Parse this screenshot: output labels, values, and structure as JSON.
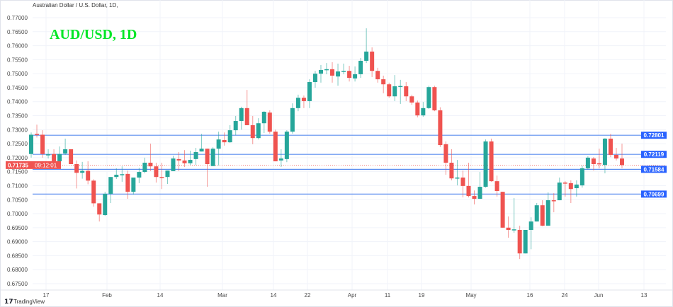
{
  "header": {
    "symbol_description": "Australian Dollar / U.S. Dollar, 1D,"
  },
  "footer": {
    "brand": "TradingView",
    "logo_text": "17"
  },
  "chart_data": {
    "type": "candlestick",
    "title": "AUD/USD, 1D",
    "title_color": "#00e626",
    "ylim": [
      0.675,
      0.77
    ],
    "y_ticks": [
      "0.77000",
      "0.76500",
      "0.76000",
      "0.75500",
      "0.75000",
      "0.74500",
      "0.74000",
      "0.73500",
      "0.73000",
      "0.72500",
      "0.72000",
      "0.71500",
      "0.71000",
      "0.70500",
      "0.70000",
      "0.69500",
      "0.69000",
      "0.68500",
      "0.68000",
      "0.67500"
    ],
    "y_tick_values": [
      0.77,
      0.765,
      0.76,
      0.755,
      0.75,
      0.745,
      0.74,
      0.735,
      0.73,
      0.725,
      0.72,
      0.715,
      0.71,
      0.705,
      0.7,
      0.695,
      0.69,
      0.685,
      0.68,
      0.675
    ],
    "x_ticks": [
      "17",
      "Feb",
      "14",
      "Mar",
      "14",
      "22",
      "Apr",
      "11",
      "19",
      "May",
      "16",
      "24",
      "Jun",
      "13"
    ],
    "grid": true,
    "colors": {
      "up": "#26a69a",
      "down": "#ef5350",
      "level_line": "#2962ff",
      "current_price": "#ef5350"
    },
    "levels": [
      {
        "label": "0.72801",
        "value": 0.72801
      },
      {
        "label": "0.72119",
        "value": 0.72119
      },
      {
        "label": "0.71584",
        "value": 0.71584
      },
      {
        "label": "0.70699",
        "value": 0.70699
      }
    ],
    "current_price": {
      "label": "0.71735",
      "value": 0.71735,
      "countdown": "09:12:01"
    },
    "ohlc": [
      [
        0.7213,
        0.729,
        0.72,
        0.7282
      ],
      [
        0.7285,
        0.7318,
        0.7272,
        0.7282
      ],
      [
        0.7282,
        0.7298,
        0.72,
        0.7213
      ],
      [
        0.721,
        0.723,
        0.7197,
        0.7212
      ],
      [
        0.7213,
        0.723,
        0.7175,
        0.7187
      ],
      [
        0.7187,
        0.724,
        0.718,
        0.7213
      ],
      [
        0.7215,
        0.7268,
        0.721,
        0.723
      ],
      [
        0.723,
        0.723,
        0.7177,
        0.7177
      ],
      [
        0.7177,
        0.719,
        0.709,
        0.7146
      ],
      [
        0.7146,
        0.7185,
        0.7125,
        0.7153
      ],
      [
        0.7153,
        0.7187,
        0.7105,
        0.7118
      ],
      [
        0.7118,
        0.7123,
        0.7025,
        0.7037
      ],
      [
        0.7037,
        0.7037,
        0.6972,
        0.6997
      ],
      [
        0.6995,
        0.7078,
        0.6992,
        0.7071
      ],
      [
        0.7071,
        0.7131,
        0.7038,
        0.7131
      ],
      [
        0.7131,
        0.7162,
        0.7124,
        0.7139
      ],
      [
        0.7139,
        0.7169,
        0.7114,
        0.7141
      ],
      [
        0.7142,
        0.7154,
        0.7053,
        0.7078
      ],
      [
        0.7078,
        0.7129,
        0.7068,
        0.7129
      ],
      [
        0.7129,
        0.7164,
        0.7109,
        0.7149
      ],
      [
        0.7149,
        0.72,
        0.7144,
        0.7182
      ],
      [
        0.7182,
        0.725,
        0.7152,
        0.7169
      ],
      [
        0.7169,
        0.7182,
        0.7111,
        0.7131
      ],
      [
        0.7131,
        0.7182,
        0.7088,
        0.7129
      ],
      [
        0.7131,
        0.7154,
        0.7106,
        0.7154
      ],
      [
        0.7152,
        0.7207,
        0.7152,
        0.7197
      ],
      [
        0.7195,
        0.722,
        0.7152,
        0.719
      ],
      [
        0.719,
        0.7227,
        0.7167,
        0.718
      ],
      [
        0.718,
        0.7225,
        0.7174,
        0.7192
      ],
      [
        0.7195,
        0.7235,
        0.7174,
        0.722
      ],
      [
        0.7222,
        0.7285,
        0.7222,
        0.7232
      ],
      [
        0.7232,
        0.7232,
        0.7096,
        0.7177
      ],
      [
        0.717,
        0.7237,
        0.717,
        0.7232
      ],
      [
        0.7232,
        0.7293,
        0.7172,
        0.7265
      ],
      [
        0.7263,
        0.729,
        0.7243,
        0.7255
      ],
      [
        0.7255,
        0.7316,
        0.7253,
        0.7298
      ],
      [
        0.7298,
        0.7349,
        0.728,
        0.7331
      ],
      [
        0.7331,
        0.7382,
        0.73,
        0.7377
      ],
      [
        0.7377,
        0.7442,
        0.7316,
        0.7316
      ],
      [
        0.7316,
        0.7349,
        0.7248,
        0.727
      ],
      [
        0.727,
        0.7341,
        0.7265,
        0.7323
      ],
      [
        0.7323,
        0.7366,
        0.7288,
        0.7364
      ],
      [
        0.7361,
        0.7369,
        0.7286,
        0.7293
      ],
      [
        0.7293,
        0.73,
        0.7187,
        0.7187
      ],
      [
        0.719,
        0.723,
        0.7167,
        0.7197
      ],
      [
        0.7195,
        0.7298,
        0.7184,
        0.7293
      ],
      [
        0.7293,
        0.7394,
        0.7286,
        0.7377
      ],
      [
        0.7377,
        0.7425,
        0.7366,
        0.7414
      ],
      [
        0.7414,
        0.7422,
        0.7377,
        0.7402
      ],
      [
        0.7402,
        0.748,
        0.7377,
        0.747
      ],
      [
        0.747,
        0.751,
        0.745,
        0.75
      ],
      [
        0.75,
        0.7531,
        0.7468,
        0.7513
      ],
      [
        0.7513,
        0.7538,
        0.7498,
        0.7516
      ],
      [
        0.7516,
        0.7541,
        0.7468,
        0.7493
      ],
      [
        0.749,
        0.7536,
        0.7457,
        0.7508
      ],
      [
        0.7507,
        0.7536,
        0.7498,
        0.751
      ],
      [
        0.751,
        0.7528,
        0.7472,
        0.7485
      ],
      [
        0.7483,
        0.7526,
        0.7472,
        0.7498
      ],
      [
        0.7498,
        0.7556,
        0.7485,
        0.7546
      ],
      [
        0.7546,
        0.7662,
        0.7538,
        0.7579
      ],
      [
        0.7579,
        0.7594,
        0.7488,
        0.751
      ],
      [
        0.751,
        0.7521,
        0.7468,
        0.748
      ],
      [
        0.748,
        0.7493,
        0.743,
        0.7462
      ],
      [
        0.7462,
        0.7468,
        0.7414,
        0.7419
      ],
      [
        0.7419,
        0.7495,
        0.7402,
        0.7455
      ],
      [
        0.7455,
        0.7478,
        0.7392,
        0.7456
      ],
      [
        0.7455,
        0.747,
        0.7402,
        0.7419
      ],
      [
        0.7419,
        0.7425,
        0.7389,
        0.7397
      ],
      [
        0.7397,
        0.7404,
        0.7344,
        0.7351
      ],
      [
        0.7351,
        0.7399,
        0.7346,
        0.7377
      ],
      [
        0.7377,
        0.7457,
        0.7374,
        0.7452
      ],
      [
        0.7452,
        0.7457,
        0.7366,
        0.7369
      ],
      [
        0.7369,
        0.738,
        0.7238,
        0.7245
      ],
      [
        0.7248,
        0.7258,
        0.7139,
        0.7182
      ],
      [
        0.7182,
        0.723,
        0.7119,
        0.7126
      ],
      [
        0.7126,
        0.7192,
        0.7101,
        0.7129
      ],
      [
        0.7129,
        0.7154,
        0.7058,
        0.7099
      ],
      [
        0.7099,
        0.7182,
        0.7058,
        0.7063
      ],
      [
        0.7063,
        0.7083,
        0.7033,
        0.7053
      ],
      [
        0.7053,
        0.7149,
        0.7053,
        0.7096
      ],
      [
        0.7096,
        0.7265,
        0.7093,
        0.7258
      ],
      [
        0.7258,
        0.7268,
        0.7114,
        0.7116
      ],
      [
        0.7116,
        0.7136,
        0.7061,
        0.7081
      ],
      [
        0.7078,
        0.7078,
        0.695,
        0.695
      ],
      [
        0.695,
        0.699,
        0.6914,
        0.6942
      ],
      [
        0.6942,
        0.7056,
        0.6932,
        0.6944
      ],
      [
        0.6942,
        0.6957,
        0.6838,
        0.6858
      ],
      [
        0.6858,
        0.6942,
        0.6858,
        0.6942
      ],
      [
        0.6942,
        0.6987,
        0.6873,
        0.6972
      ],
      [
        0.6972,
        0.7038,
        0.6972,
        0.703
      ],
      [
        0.703,
        0.7048,
        0.6955,
        0.6957
      ],
      [
        0.6957,
        0.7076,
        0.6957,
        0.7048
      ],
      [
        0.7048,
        0.7073,
        0.7005,
        0.7046
      ],
      [
        0.7048,
        0.7129,
        0.7048,
        0.7111
      ],
      [
        0.7111,
        0.7116,
        0.7061,
        0.7109
      ],
      [
        0.7109,
        0.7119,
        0.7038,
        0.7088
      ],
      [
        0.7091,
        0.7119,
        0.7061,
        0.7104
      ],
      [
        0.7101,
        0.7172,
        0.7093,
        0.7162
      ],
      [
        0.7162,
        0.7205,
        0.7157,
        0.72
      ],
      [
        0.7197,
        0.7202,
        0.7154,
        0.7177
      ],
      [
        0.718,
        0.7232,
        0.7162,
        0.7177
      ],
      [
        0.7174,
        0.727,
        0.7144,
        0.7268
      ],
      [
        0.7268,
        0.7285,
        0.7202,
        0.721
      ],
      [
        0.721,
        0.7235,
        0.719,
        0.7197
      ],
      [
        0.7197,
        0.725,
        0.7162,
        0.71735
      ]
    ]
  }
}
